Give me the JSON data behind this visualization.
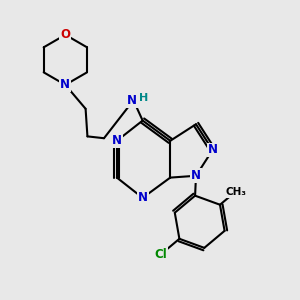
{
  "background_color": "#e8e8e8",
  "bond_color": "#000000",
  "N_color": "#0000cc",
  "O_color": "#cc0000",
  "Cl_color": "#008800",
  "H_color": "#008888",
  "line_width": 1.5,
  "figsize": [
    3.0,
    3.0
  ],
  "dpi": 100,
  "xlim": [
    0.5,
    8.5
  ],
  "ylim": [
    1.5,
    9.5
  ]
}
